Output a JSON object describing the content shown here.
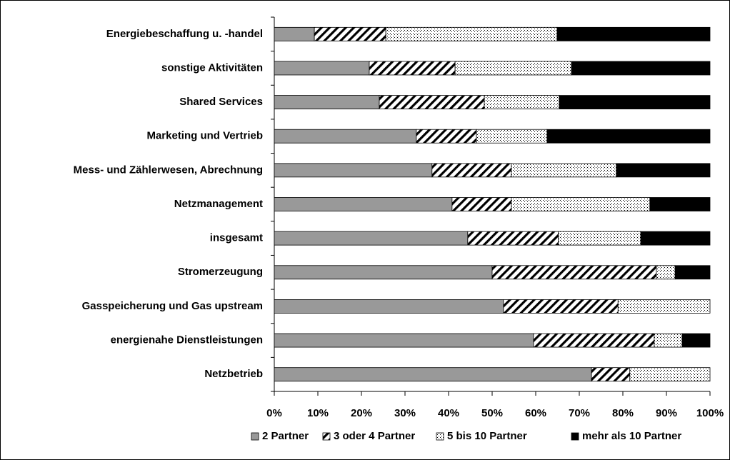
{
  "chart_data": {
    "type": "stacked_barh",
    "categories": [
      "Energiebeschaffung u. -handel",
      "sonstige Aktivitäten",
      "Shared Services",
      "Marketing und Vertrieb",
      "Mess- und Zählerwesen, Abrechnung",
      "Netzmanagement",
      "insgesamt",
      "Stromerzeugung",
      "Gasspeicherung und Gas upstream",
      "energienahe Dienstleistungen",
      "Netzbetrieb"
    ],
    "series": [
      {
        "name": "2 Partner",
        "color": "#999999",
        "pattern": "solid",
        "values": [
          9.2,
          21.8,
          24.1,
          32.6,
          36.2,
          40.8,
          44.4,
          50.0,
          52.6,
          59.5,
          72.8
        ]
      },
      {
        "name": "3 oder 4 Partner",
        "color": "#000000",
        "pattern": "hatch",
        "values": [
          16.4,
          19.7,
          24.1,
          13.8,
          18.2,
          13.6,
          20.8,
          37.7,
          26.3,
          27.7,
          8.8
        ]
      },
      {
        "name": "5 bis 10 Partner",
        "color": "#000000",
        "pattern": "dots",
        "values": [
          39.3,
          26.7,
          17.2,
          16.2,
          24.1,
          31.8,
          18.9,
          4.3,
          21.1,
          6.4,
          18.4
        ]
      },
      {
        "name": "mehr als 10 Partner",
        "color": "#000000",
        "pattern": "solid",
        "values": [
          35.1,
          31.8,
          34.6,
          37.4,
          21.5,
          13.8,
          15.9,
          8.0,
          0,
          6.4,
          0
        ]
      }
    ],
    "xlim": [
      0,
      100
    ],
    "xticks": [
      {
        "value": 0,
        "label": "0%"
      },
      {
        "value": 10,
        "label": "10%"
      },
      {
        "value": 20,
        "label": "20%"
      },
      {
        "value": 30,
        "label": "30%"
      },
      {
        "value": 40,
        "label": "40%"
      },
      {
        "value": 50,
        "label": "50%"
      },
      {
        "value": 60,
        "label": "60%"
      },
      {
        "value": 70,
        "label": "70%"
      },
      {
        "value": 80,
        "label": "80%"
      },
      {
        "value": 90,
        "label": "90%"
      },
      {
        "value": 100,
        "label": "100%"
      }
    ],
    "legend": "bottom"
  }
}
